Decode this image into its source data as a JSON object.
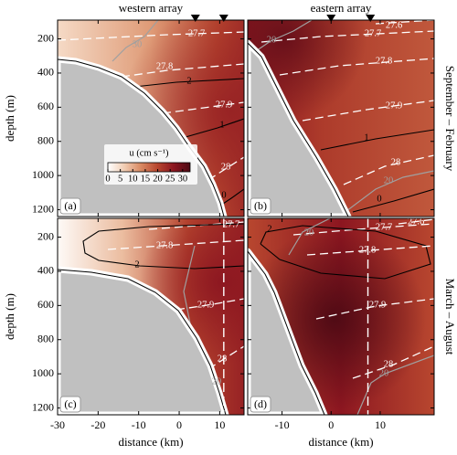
{
  "chart_data": [
    {
      "type": "contour",
      "title": "western array",
      "panel_label": "(a)",
      "ylabel": "depth (m)",
      "xlim": [
        -30,
        16
      ],
      "ylim": [
        1240,
        90
      ],
      "yticks": [
        200,
        400,
        600,
        800,
        1000,
        1200
      ],
      "xticks": [
        -30,
        -20,
        -10,
        0,
        10
      ],
      "moorings": [
        4,
        11
      ],
      "contours": [
        {
          "kind": "density",
          "value": 27.7
        },
        {
          "kind": "speed",
          "value": 30
        },
        {
          "kind": "density",
          "value": 27.8
        },
        {
          "kind": "transport",
          "value": 2
        },
        {
          "kind": "density",
          "value": 27.9
        },
        {
          "kind": "transport",
          "value": 1
        },
        {
          "kind": "density",
          "value": 28
        },
        {
          "kind": "transport",
          "value": 0
        }
      ],
      "colorbar": {
        "label": "u (cm s⁻¹)",
        "clim": [
          0,
          33
        ],
        "ticks": [
          0,
          5,
          10,
          15,
          20,
          25,
          30
        ],
        "colors": [
          "#ffffff",
          "#f1cdb3",
          "#d98a63",
          "#b8472f",
          "#8c1620",
          "#4d0a14"
        ]
      }
    },
    {
      "type": "contour",
      "title": "eastern array",
      "panel_label": "(b)",
      "row_label": "September – February",
      "xlim": [
        -17,
        21
      ],
      "ylim": [
        1240,
        90
      ],
      "yticks": [
        200,
        400,
        600,
        800,
        1000,
        1200
      ],
      "xticks": [
        -10,
        0,
        10
      ],
      "moorings": [
        0,
        8
      ],
      "contours": [
        {
          "kind": "density",
          "value": 27.6
        },
        {
          "kind": "density",
          "value": 27.7
        },
        {
          "kind": "speed",
          "value": 20
        },
        {
          "kind": "density",
          "value": 27.8
        },
        {
          "kind": "density",
          "value": 27.9
        },
        {
          "kind": "transport",
          "value": 1
        },
        {
          "kind": "speed",
          "value": 20
        },
        {
          "kind": "density",
          "value": 28
        },
        {
          "kind": "transport",
          "value": 0
        }
      ]
    },
    {
      "type": "contour",
      "panel_label": "(c)",
      "ylabel": "depth (m)",
      "xlabel": "distance (km)",
      "xlim": [
        -30,
        16
      ],
      "ylim": [
        1240,
        90
      ],
      "yticks": [
        200,
        400,
        600,
        800,
        1000,
        1200
      ],
      "xticks": [
        -30,
        -20,
        -10,
        0,
        10
      ],
      "section_x": 11,
      "contours": [
        {
          "kind": "density",
          "value": 27.7
        },
        {
          "kind": "transport",
          "value": 2
        },
        {
          "kind": "density",
          "value": 27.8
        },
        {
          "kind": "density",
          "value": 27.9
        },
        {
          "kind": "speed",
          "value": 20
        },
        {
          "kind": "density",
          "value": 28
        }
      ]
    },
    {
      "type": "contour",
      "panel_label": "(d)",
      "row_label": "March – August",
      "xlabel": "distance (km)",
      "xlim": [
        -17,
        21
      ],
      "ylim": [
        1240,
        90
      ],
      "yticks": [
        200,
        400,
        600,
        800,
        1000,
        1200
      ],
      "xticks": [
        -10,
        0,
        10
      ],
      "section_x": 7.5,
      "contours": [
        {
          "kind": "density",
          "value": 27.6
        },
        {
          "kind": "density",
          "value": 27.7
        },
        {
          "kind": "transport",
          "value": 2
        },
        {
          "kind": "speed",
          "value": 20
        },
        {
          "kind": "density",
          "value": 27.8
        },
        {
          "kind": "density",
          "value": 27.9
        },
        {
          "kind": "speed",
          "value": 20
        },
        {
          "kind": "density",
          "value": 28
        }
      ]
    }
  ]
}
